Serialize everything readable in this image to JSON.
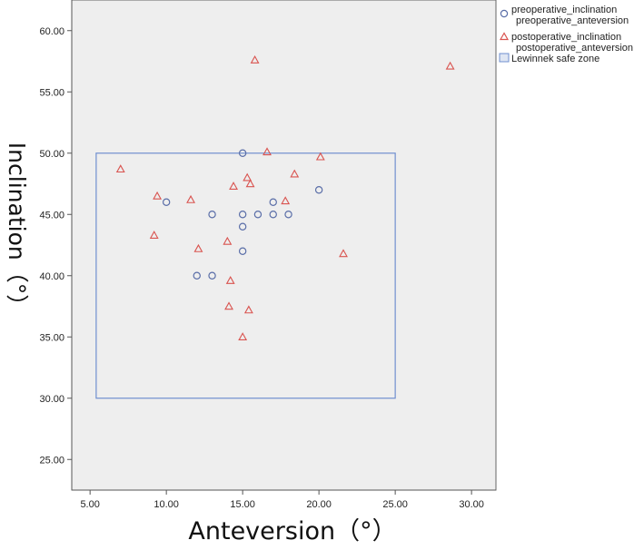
{
  "chart_data": {
    "type": "scatter",
    "xlabel": "Anteversion（°）",
    "ylabel": "Inclination（°）",
    "xlim": [
      3.8,
      31.6
    ],
    "ylim": [
      22.5,
      62.5
    ],
    "x_ticks": [
      "5.00",
      "10.00",
      "15.00",
      "20.00",
      "25.00",
      "30.00"
    ],
    "y_ticks": [
      "25.00",
      "30.00",
      "35.00",
      "40.00",
      "45.00",
      "50.00",
      "55.00",
      "60.00"
    ],
    "grid": false,
    "legend_position": "top-right, outside plot",
    "safe_zone": {
      "label": "Lewinnek safe zone",
      "x_range": [
        5.4,
        25
      ],
      "y_range": [
        30,
        50
      ],
      "color": "#6f8fcf"
    },
    "series": [
      {
        "name": "preoperative_inclination\npreoperative_anteversion",
        "legend_lines": [
          "preoperative_inclination",
          "preoperative_anteversion"
        ],
        "marker": "circle",
        "color": "#5a6ea8",
        "points": [
          {
            "x": 10,
            "y": 46
          },
          {
            "x": 12,
            "y": 40
          },
          {
            "x": 13,
            "y": 40
          },
          {
            "x": 13,
            "y": 45
          },
          {
            "x": 15,
            "y": 50
          },
          {
            "x": 15,
            "y": 45
          },
          {
            "x": 15,
            "y": 44
          },
          {
            "x": 15,
            "y": 42
          },
          {
            "x": 16,
            "y": 45
          },
          {
            "x": 17,
            "y": 46
          },
          {
            "x": 17,
            "y": 45
          },
          {
            "x": 18,
            "y": 45
          },
          {
            "x": 20,
            "y": 47
          }
        ]
      },
      {
        "name": "postoperative_inclination\npostoperative_anteversion",
        "legend_lines": [
          "postoperative_inclination",
          "postoperative_anteversion"
        ],
        "marker": "triangle",
        "color": "#d9534f",
        "points": [
          {
            "x": 7,
            "y": 48.7
          },
          {
            "x": 9.2,
            "y": 43.3
          },
          {
            "x": 9.4,
            "y": 46.5
          },
          {
            "x": 11.6,
            "y": 46.2
          },
          {
            "x": 12.1,
            "y": 42.2
          },
          {
            "x": 14,
            "y": 42.8
          },
          {
            "x": 14.1,
            "y": 37.5
          },
          {
            "x": 14.2,
            "y": 39.6
          },
          {
            "x": 14.4,
            "y": 47.3
          },
          {
            "x": 15,
            "y": 35
          },
          {
            "x": 15.3,
            "y": 48
          },
          {
            "x": 15.4,
            "y": 37.2
          },
          {
            "x": 15.5,
            "y": 47.5
          },
          {
            "x": 15.8,
            "y": 57.6
          },
          {
            "x": 16.6,
            "y": 50.1
          },
          {
            "x": 17.8,
            "y": 46.1
          },
          {
            "x": 18.4,
            "y": 48.3
          },
          {
            "x": 20.1,
            "y": 49.7
          },
          {
            "x": 21.6,
            "y": 41.8
          },
          {
            "x": 28.6,
            "y": 57.1
          }
        ]
      }
    ]
  },
  "colors": {
    "plot_background": "#eeeeee",
    "axis": "#555555"
  }
}
